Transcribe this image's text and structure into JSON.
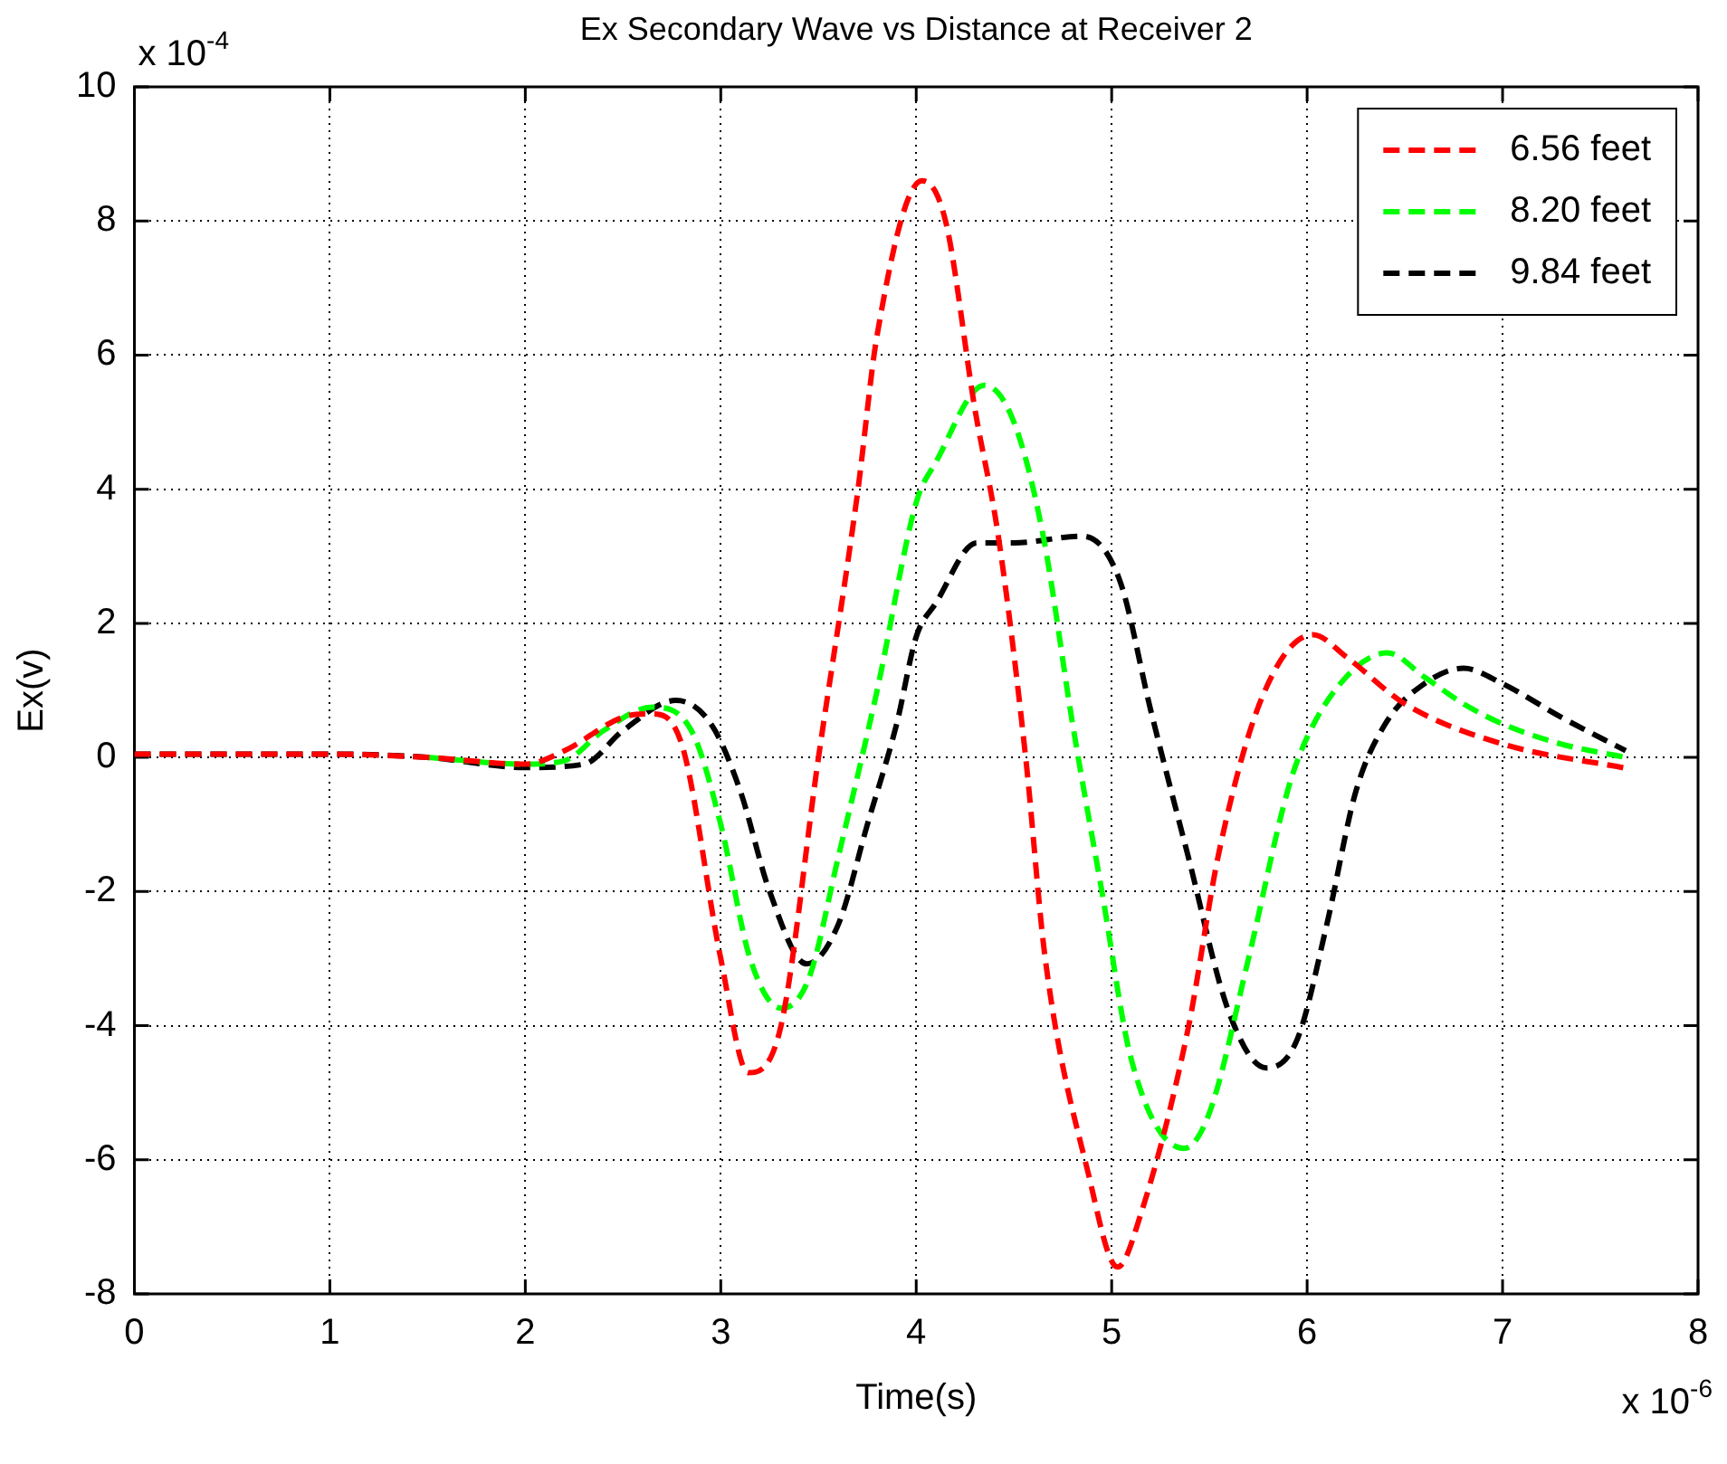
{
  "chart_data": {
    "type": "line",
    "title": "Ex Secondary Wave vs Distance at Receiver 2",
    "xlabel": "Time(s)",
    "ylabel": "Ex(v)",
    "annotations": [
      "x 10$^{-4}$",
      "x 10$^{-6}$"
    ],
    "xlim": [
      0,
      8
    ],
    "xticks": [
      0,
      1,
      2,
      3,
      4,
      5,
      6,
      7,
      8
    ],
    "ylim": [
      -8,
      10
    ],
    "yticks": [
      -8,
      -6,
      -4,
      -2,
      0,
      2,
      4,
      6,
      8,
      10
    ],
    "grid": true,
    "legend": "top right",
    "marker": "none",
    "line_style": "dashed",
    "series": [
      {
        "name": "6.56 feet",
        "color": "#ff0000",
        "x": [
          0,
          1,
          1.5,
          2,
          2.2,
          2.5,
          2.65,
          2.8,
          3.0,
          3.14,
          3.3,
          3.5,
          3.7,
          3.8,
          4.03,
          4.15,
          4.3,
          4.42,
          4.56,
          4.66,
          4.88,
          5.03,
          5.15,
          5.39,
          5.55,
          5.77,
          6.03,
          6.2,
          6.5,
          7.0,
          7.63
        ],
        "values": [
          0.05,
          0.05,
          0,
          -0.1,
          0.1,
          0.6,
          0.65,
          0.2,
          -3,
          -4.7,
          -4.1,
          0,
          3.95,
          6.3,
          8.6,
          8.0,
          5.2,
          3.3,
          0,
          -3,
          -6.2,
          -7.6,
          -6.8,
          -4.06,
          -1.4,
          0.9,
          1.83,
          1.5,
          0.8,
          0.2,
          -0.16
        ]
      },
      {
        "name": "8.20 feet",
        "color": "#00ff00",
        "x": [
          1.5,
          2,
          2.2,
          2.4,
          2.65,
          2.85,
          3.0,
          3.15,
          3.31,
          3.45,
          3.6,
          3.8,
          4.0,
          4.1,
          4.35,
          4.5,
          4.65,
          4.8,
          4.95,
          5.1,
          5.37,
          5.5,
          5.7,
          5.9,
          6.0,
          6.2,
          6.41,
          6.6,
          6.8,
          7.0,
          7.3,
          7.63
        ],
        "values": [
          0,
          -0.1,
          -0.05,
          0.4,
          0.75,
          0.4,
          -1,
          -3,
          -3.74,
          -3.3,
          -1.5,
          1,
          3.8,
          4.4,
          5.55,
          5.0,
          3.3,
          0.5,
          -2,
          -4.5,
          -5.83,
          -5.3,
          -3,
          -0.5,
          0.3,
          1.2,
          1.56,
          1.2,
          0.8,
          0.5,
          0.2,
          0
        ]
      },
      {
        "name": "9.84 feet",
        "color": "#000000",
        "x": [
          0,
          1,
          1.5,
          2,
          2.3,
          2.5,
          2.77,
          2.95,
          3.1,
          3.25,
          3.44,
          3.6,
          3.75,
          3.9,
          4.0,
          4.1,
          4.31,
          4.5,
          4.85,
          5.04,
          5.2,
          5.39,
          5.6,
          5.79,
          5.95,
          6.1,
          6.25,
          6.4,
          6.6,
          6.8,
          7.0,
          7.3,
          7.63
        ],
        "values": [
          0.05,
          0.05,
          0,
          -0.15,
          -0.1,
          0.4,
          0.85,
          0.5,
          -0.5,
          -2,
          -3.08,
          -2.5,
          -1,
          0.5,
          1.8,
          2.3,
          3.2,
          3.2,
          3.3,
          2.65,
          0.7,
          -1.46,
          -3.8,
          -4.63,
          -4.2,
          -2.5,
          -0.5,
          0.5,
          1.1,
          1.33,
          1.1,
          0.6,
          0.1
        ]
      }
    ]
  }
}
